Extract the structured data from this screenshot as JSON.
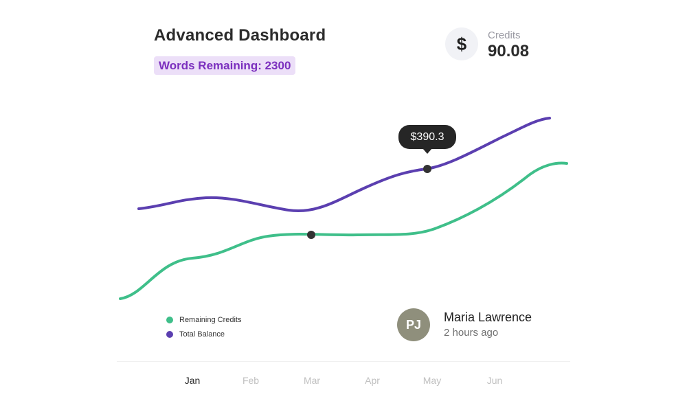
{
  "header": {
    "title": "Advanced Dashboard",
    "words_remaining": "Words Remaining: 2300"
  },
  "credits": {
    "icon": "dollar-icon",
    "icon_glyph": "$",
    "label": "Credits",
    "value": "90.08"
  },
  "tooltip": {
    "text": "$390.3"
  },
  "legend": [
    {
      "label": "Remaining Credits",
      "color": "#3fbf8a"
    },
    {
      "label": "Total Balance",
      "color": "#5b3fb0"
    }
  ],
  "user": {
    "initials": "PJ",
    "name": "Maria Lawrence",
    "time": "2 hours ago"
  },
  "chart_data": {
    "type": "line",
    "categories": [
      "Jan",
      "Feb",
      "Mar",
      "Apr",
      "May",
      "Jun"
    ],
    "active_category": "Jan",
    "grid": false,
    "legend_position": "bottom-left",
    "series": [
      {
        "name": "Remaining Credits",
        "color": "#3fbf8a"
      },
      {
        "name": "Total Balance",
        "color": "#5b3fb0"
      }
    ],
    "highlighted_value": "$390.3"
  }
}
